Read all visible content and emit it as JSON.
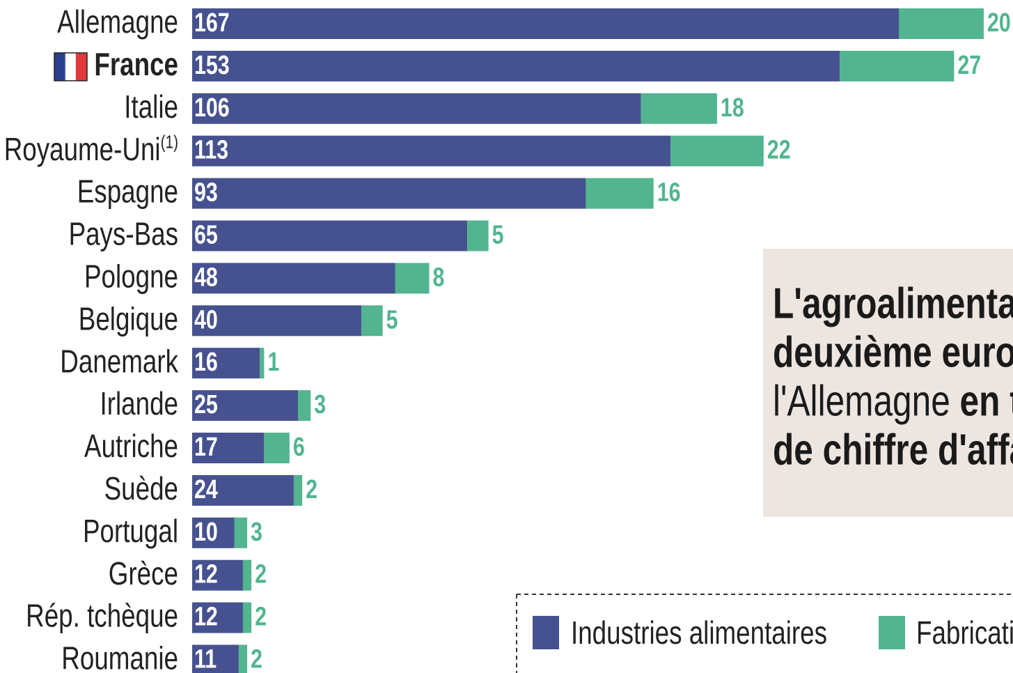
{
  "chart_data": {
    "type": "stacked-bar-horizontal",
    "categories": [
      "Allemagne",
      "France",
      "Italie",
      "Royaume-Uni",
      "Espagne",
      "Pays-Bas",
      "Pologne",
      "Belgique",
      "Danemark",
      "Irlande",
      "Autriche",
      "Suède",
      "Portugal",
      "Grèce",
      "Rép. tchèque",
      "Roumanie"
    ],
    "category_markers": [
      null,
      null,
      null,
      "(1)",
      null,
      null,
      null,
      null,
      null,
      null,
      null,
      null,
      null,
      null,
      null,
      null
    ],
    "highlight": "France",
    "series": [
      {
        "name": "Industries alimentaires",
        "color": "#46528f",
        "values": [
          167,
          153,
          106,
          113,
          93,
          65,
          48,
          40,
          16,
          25,
          17,
          24,
          10,
          12,
          12,
          11
        ]
      },
      {
        "name": "Fabricati",
        "color": "#52b58f",
        "values": [
          20,
          27,
          18,
          22,
          16,
          5,
          8,
          5,
          1,
          3,
          6,
          2,
          3,
          2,
          2,
          2
        ]
      }
    ],
    "annotation": [
      [
        {
          "text": "L'agroalimentair",
          "bold": true
        }
      ],
      [
        {
          "text": "deuxième europ",
          "bold": true
        }
      ],
      [
        {
          "text": "l'Allemagne",
          "bold": false
        },
        {
          "text": " en te",
          "bold": true
        }
      ],
      [
        {
          "text": "de chiffre d'affai",
          "bold": true
        }
      ]
    ]
  }
}
